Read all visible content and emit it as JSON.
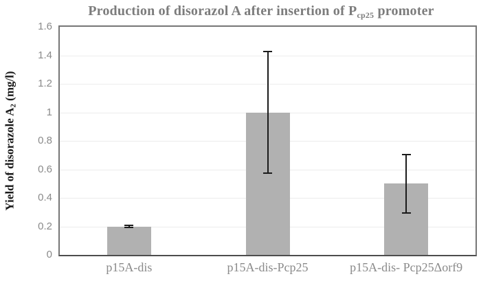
{
  "chart_data": {
    "type": "bar",
    "title": {
      "text": "Production of disorazol A after insertion of Pcp25 promoter",
      "pre": "Production of disorazol A after insertion of P",
      "sub": "cp25",
      "post": " promoter"
    },
    "ylabel": {
      "text": "Yield of disorazole A2 (mg/l)",
      "pre": "Yield of disorazole A",
      "sub": "2",
      "post": " (mg/l)"
    },
    "xlabel": "",
    "categories": [
      "p15A-dis",
      "p15A-dis-Pcp25",
      "p15A-dis- Pcp25Δorf9"
    ],
    "values": [
      0.2,
      1.0,
      0.5
    ],
    "error_bars": [
      0.01,
      0.43,
      0.21
    ],
    "ylim": [
      0,
      1.6
    ],
    "yticks": [
      {
        "label": "0",
        "value": 0
      },
      {
        "label": "0.2",
        "value": 0.2
      },
      {
        "label": "0.4",
        "value": 0.4
      },
      {
        "label": "0.6",
        "value": 0.6
      },
      {
        "label": "0.8",
        "value": 0.8
      },
      {
        "label": "1",
        "value": 1.0
      },
      {
        "label": "1.2",
        "value": 1.2
      },
      {
        "label": "1.4",
        "value": 1.4
      },
      {
        "label": "1.6",
        "value": 1.6
      }
    ],
    "grid": true,
    "legend_position": "none",
    "colors": {
      "bar_fill": "#b1b1b1",
      "error_bar": "#1a1a1a",
      "gridline": "#ececec",
      "plot_border": "#767676",
      "axis_line": "#4d4d4d",
      "title_text": "#7c7c7c",
      "tick_text": "#8a8a8a",
      "axis_label_text": "#1a1a1a"
    }
  }
}
